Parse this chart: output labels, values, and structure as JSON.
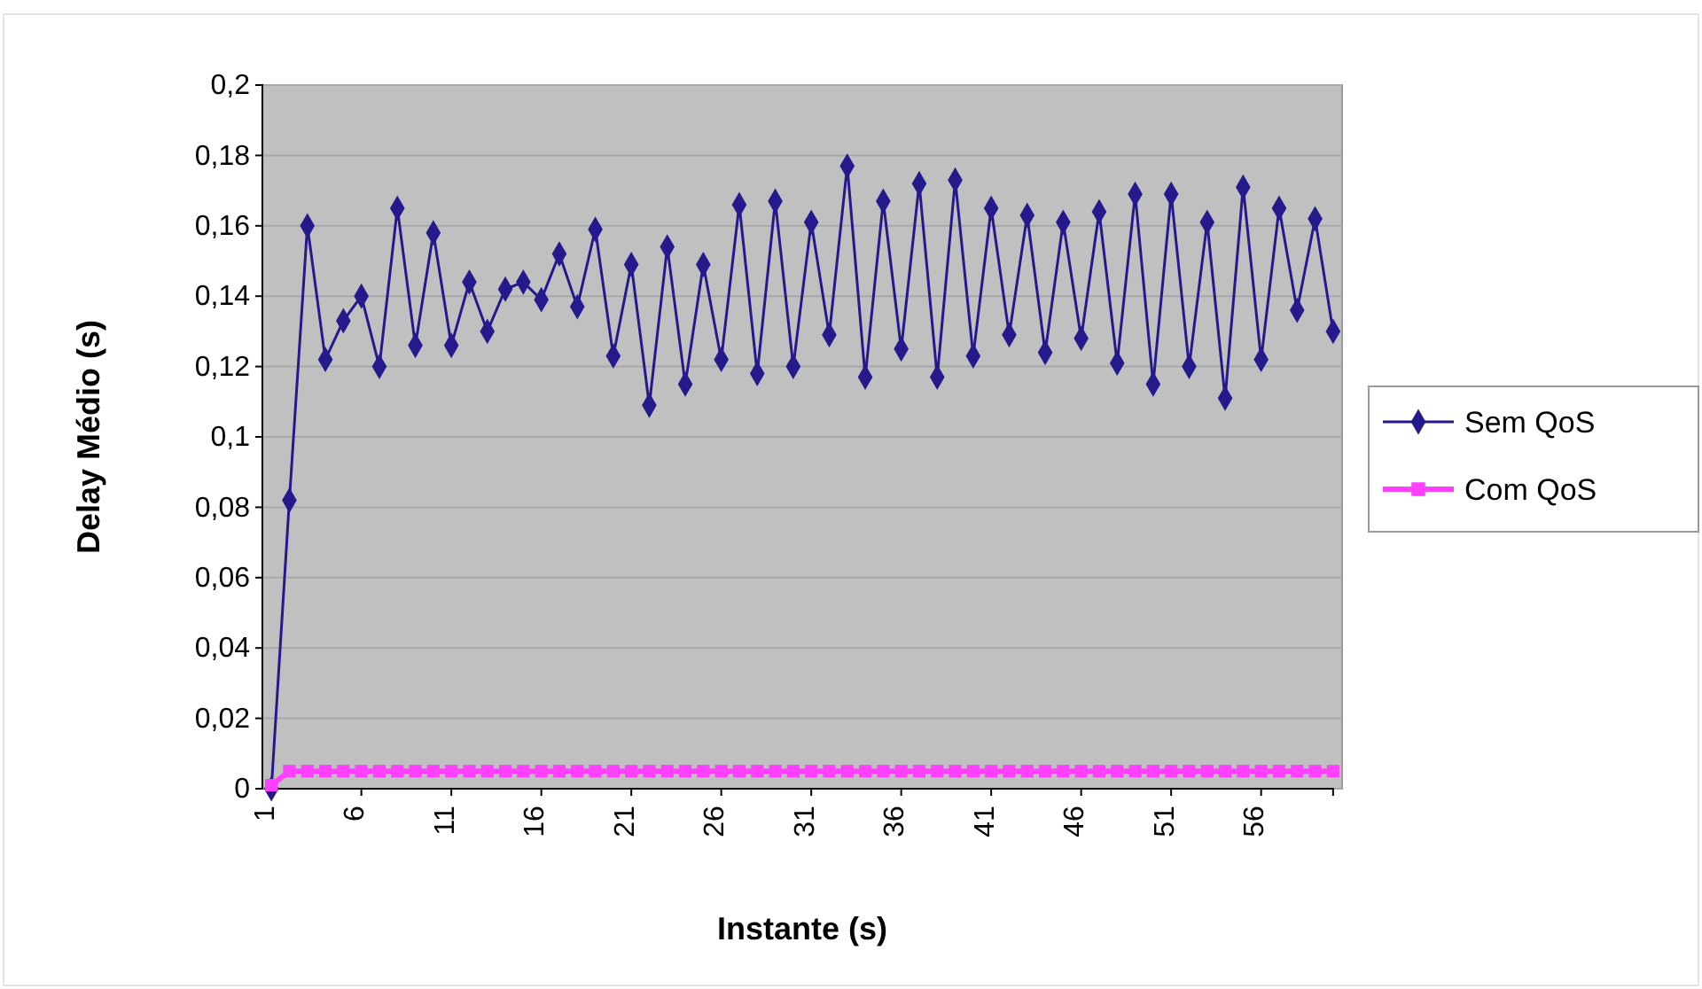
{
  "chart_data": {
    "type": "line",
    "xlabel": "Instante (s)",
    "ylabel": "Delay Médio (s)",
    "categories": [
      "1",
      null,
      null,
      null,
      null,
      "6",
      null,
      null,
      null,
      null,
      "11",
      null,
      null,
      null,
      null,
      "16",
      null,
      null,
      null,
      null,
      "21",
      null,
      null,
      null,
      null,
      "26",
      null,
      null,
      null,
      null,
      "31",
      null,
      null,
      null,
      null,
      "36",
      null,
      null,
      null,
      null,
      "41",
      null,
      null,
      null,
      null,
      "46",
      null,
      null,
      null,
      null,
      "51",
      null,
      null,
      null,
      null,
      "56",
      null,
      null,
      null,
      null
    ],
    "series": [
      {
        "name": "Sem QoS",
        "color": "#241a8c",
        "marker": "diamond",
        "values": [
          0,
          0.082,
          0.16,
          0.122,
          0.133,
          0.14,
          0.12,
          0.165,
          0.126,
          0.158,
          0.126,
          0.144,
          0.13,
          0.142,
          0.144,
          0.139,
          0.152,
          0.137,
          0.159,
          0.123,
          0.149,
          0.109,
          0.154,
          0.115,
          0.149,
          0.122,
          0.166,
          0.118,
          0.167,
          0.12,
          0.161,
          0.129,
          0.177,
          0.117,
          0.167,
          0.125,
          0.172,
          0.117,
          0.173,
          0.123,
          0.165,
          0.129,
          0.163,
          0.124,
          0.161,
          0.128,
          0.164,
          0.121,
          0.169,
          0.115,
          0.169,
          0.12,
          0.161,
          0.111,
          0.171,
          0.122,
          0.165,
          0.136,
          0.162,
          0.13
        ]
      },
      {
        "name": "Com QoS",
        "color": "#ff40ff",
        "marker": "square",
        "values": [
          0.001,
          0.005,
          0.005,
          0.005,
          0.005,
          0.005,
          0.005,
          0.005,
          0.005,
          0.005,
          0.005,
          0.005,
          0.005,
          0.005,
          0.005,
          0.005,
          0.005,
          0.005,
          0.005,
          0.005,
          0.005,
          0.005,
          0.005,
          0.005,
          0.005,
          0.005,
          0.005,
          0.005,
          0.005,
          0.005,
          0.005,
          0.005,
          0.005,
          0.005,
          0.005,
          0.005,
          0.005,
          0.005,
          0.005,
          0.005,
          0.005,
          0.005,
          0.005,
          0.005,
          0.005,
          0.005,
          0.005,
          0.005,
          0.005,
          0.005,
          0.005,
          0.005,
          0.005,
          0.005,
          0.005,
          0.005,
          0.005,
          0.005,
          0.005,
          0.005
        ]
      }
    ],
    "ylim": [
      0,
      0.2
    ],
    "yticks": [
      {
        "value": 0,
        "label": "0"
      },
      {
        "value": 0.02,
        "label": "0,02"
      },
      {
        "value": 0.04,
        "label": "0,04"
      },
      {
        "value": 0.06,
        "label": "0,06"
      },
      {
        "value": 0.08,
        "label": "0,08"
      },
      {
        "value": 0.1,
        "label": "0,1"
      },
      {
        "value": 0.12,
        "label": "0,12"
      },
      {
        "value": 0.14,
        "label": "0,14"
      },
      {
        "value": 0.16,
        "label": "0,16"
      },
      {
        "value": 0.18,
        "label": "0,18"
      },
      {
        "value": 0.2,
        "label": "0,2"
      }
    ],
    "grid": "y",
    "legend": "right",
    "line_style": "solid"
  }
}
